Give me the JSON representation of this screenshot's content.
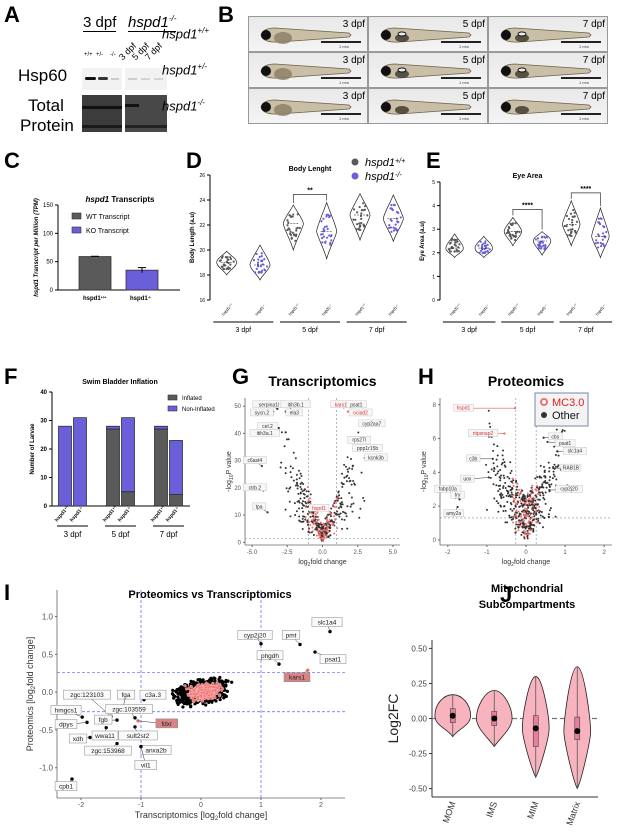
{
  "panels": {
    "A": {
      "letter": "A",
      "group_left": "3 dpf",
      "group_right": "hspd1",
      "group_right_sup": "-/-",
      "lane_labels_left": [
        "+/+",
        "+/-",
        "-/-"
      ],
      "lane_labels_right": [
        "3 dpf",
        "5 dpf",
        "7 dpf"
      ],
      "row_labels": [
        "Hsp60",
        "Total",
        "Protein"
      ]
    },
    "B": {
      "letter": "B",
      "genotypes": [
        {
          "name": "hspd1",
          "sup": "+/+"
        },
        {
          "name": "hspd1",
          "sup": "+/-"
        },
        {
          "name": "hspd1",
          "sup": "-/-"
        }
      ],
      "stages": [
        "3 dpf",
        "5 dpf",
        "7 dpf"
      ],
      "scale_label": "1 mm"
    },
    "C": {
      "letter": "C"
    },
    "D": {
      "letter": "D"
    },
    "E": {
      "letter": "E"
    },
    "F": {
      "letter": "F"
    },
    "G": {
      "letter": "G"
    },
    "H": {
      "letter": "H"
    },
    "I": {
      "letter": "I"
    },
    "J": {
      "letter": "J"
    }
  },
  "colors": {
    "wt": "#5a5a5a",
    "ko": "#6a5fd8",
    "mc": "#f07070",
    "other": "#333333",
    "violin_fill": "#f7b4bf",
    "box_fill": "#e87fa0",
    "dash_blue": "#5b5bff"
  },
  "chart_data": [
    {
      "id": "C",
      "type": "bar",
      "title": "hspd1 Transcripts",
      "title_italic_part": "hspd1",
      "ylabel": "hspd1 Transcript per Million (TPM)",
      "ylim": [
        0,
        150
      ],
      "yticks": [
        0,
        50,
        100,
        150
      ],
      "categories": [
        "hspd1+/+",
        "hspd1-/-"
      ],
      "category_names": [
        "hspd1",
        "hspd1"
      ],
      "category_sups": [
        "+/+",
        "-/-"
      ],
      "series": [
        {
          "name": "WT Transcript",
          "values": [
            59
          ],
          "errors": [
            0.5
          ]
        },
        {
          "name": "KO Transcript",
          "values": [
            35
          ],
          "errors": [
            4.5
          ]
        }
      ],
      "legend": [
        "WT Transcript",
        "KO Transcript"
      ],
      "legend_position": "top-left"
    },
    {
      "id": "D",
      "type": "violin",
      "title": "Body Lenght",
      "ylabel": "Body Length (a.u)",
      "ylim": [
        16,
        26
      ],
      "yticks": [
        16,
        18,
        20,
        22,
        24,
        26
      ],
      "groups": [
        "3 dpf",
        "5 dpf",
        "7 dpf"
      ],
      "x_labels": [
        "hspd1+/+",
        "hspd1-/-",
        "hspd1+/+",
        "hspd1-/-",
        "hspd1+/+",
        "hspd1-/-"
      ],
      "violins": [
        {
          "genotype": "wt",
          "median": 19.0,
          "min": 18.0,
          "max": 19.9
        },
        {
          "genotype": "ko",
          "median": 18.8,
          "min": 17.6,
          "max": 20.4
        },
        {
          "genotype": "wt",
          "median": 22.1,
          "min": 20.0,
          "max": 23.6
        },
        {
          "genotype": "ko",
          "median": 21.5,
          "min": 19.3,
          "max": 23.8
        },
        {
          "genotype": "wt",
          "median": 22.8,
          "min": 20.8,
          "max": 24.5
        },
        {
          "genotype": "ko",
          "median": 22.5,
          "min": 20.7,
          "max": 24.4
        }
      ],
      "significance": [
        {
          "pair": [
            2,
            3
          ],
          "label": "**"
        }
      ],
      "legend": [
        {
          "label": "hspd1",
          "sup": "+/+",
          "key": "wt"
        },
        {
          "label": "hspd1",
          "sup": "-/-",
          "key": "ko"
        }
      ],
      "legend_position": "top-right"
    },
    {
      "id": "E",
      "type": "violin",
      "title": "Eye Area",
      "ylabel": "Eye Area (a.u)",
      "ylim": [
        0,
        5
      ],
      "yticks": [
        0,
        1,
        2,
        3,
        4,
        5
      ],
      "groups": [
        "3 dpf",
        "5 dpf",
        "7 dpf"
      ],
      "x_labels": [
        "hspd1+/+",
        "hspd1-/-",
        "hspd1+/+",
        "hspd1-/-",
        "hspd1+/+",
        "hspd1-/-"
      ],
      "violins": [
        {
          "genotype": "wt",
          "median": 2.2,
          "min": 1.8,
          "max": 2.8
        },
        {
          "genotype": "ko",
          "median": 2.2,
          "min": 1.8,
          "max": 2.7
        },
        {
          "genotype": "wt",
          "median": 2.9,
          "min": 2.3,
          "max": 3.5
        },
        {
          "genotype": "ko",
          "median": 2.5,
          "min": 1.9,
          "max": 2.9
        },
        {
          "genotype": "wt",
          "median": 3.2,
          "min": 2.3,
          "max": 4.2
        },
        {
          "genotype": "ko",
          "median": 2.7,
          "min": 1.8,
          "max": 3.9
        }
      ],
      "significance": [
        {
          "pair": [
            2,
            3
          ],
          "label": "****"
        },
        {
          "pair": [
            4,
            5
          ],
          "label": "****"
        }
      ]
    },
    {
      "id": "F",
      "type": "bar",
      "stacked": true,
      "title": "Swim Bladder Inflation",
      "ylabel": "Number of Larvae",
      "ylim": [
        0,
        40
      ],
      "yticks": [
        0,
        10,
        20,
        30,
        40
      ],
      "categories": [
        "hspd1+/+",
        "hspd1-/-",
        "hspd1+/+",
        "hspd1-/-",
        "hspd1+/+",
        "hspd1-/-"
      ],
      "groups": [
        "3 dpf",
        "5 dpf",
        "7 dpf"
      ],
      "series": [
        {
          "name": "Inflated",
          "values": [
            0,
            0,
            27,
            5,
            27,
            4
          ]
        },
        {
          "name": "Non-Inflated",
          "values": [
            28,
            31,
            1,
            26,
            1,
            19
          ]
        }
      ],
      "legend": [
        "Inflated",
        "Non-Inflated"
      ],
      "legend_position": "top-right"
    },
    {
      "id": "G",
      "type": "scatter",
      "title": "Transcriptomics",
      "xlabel": "log2fold change",
      "ylabel": "-log10P value",
      "xlim": [
        -5.5,
        5.5
      ],
      "ylim": [
        -1,
        53
      ],
      "xticks": [
        -5.0,
        -2.5,
        0.0,
        2.5,
        5.0
      ],
      "xtick_labels": [
        "-5.0",
        "-2.5",
        "0.0",
        "2.5",
        "5.0"
      ],
      "yticks": [
        0,
        10,
        20,
        30,
        40,
        50
      ],
      "vlines": [
        -1,
        1
      ],
      "hline": 1.3,
      "labels": [
        {
          "text": "serpina1l",
          "x": -3.2,
          "y": 49,
          "lx": -3.8,
          "ly": 50.5,
          "color": "other"
        },
        {
          "text": "itih3b.1",
          "x": -2.6,
          "y": 48,
          "lx": -1.9,
          "ly": 50.5,
          "color": "other"
        },
        {
          "text": "sycn.2",
          "x": -3.5,
          "y": 48,
          "lx": -4.3,
          "ly": 47.5,
          "color": "other"
        },
        {
          "text": "ela3",
          "x": -2.6,
          "y": 48,
          "lx": -2.0,
          "ly": 47.5,
          "color": "other"
        },
        {
          "text": "cel.2",
          "x": -3.1,
          "y": 42,
          "lx": -3.9,
          "ly": 42.5,
          "color": "other"
        },
        {
          "text": "itih3a.1",
          "x": -3.1,
          "y": 41,
          "lx": -4.1,
          "ly": 40,
          "color": "other"
        },
        {
          "text": "c6ast4",
          "x": -4.3,
          "y": 28,
          "lx": -4.8,
          "ly": 30,
          "color": "other"
        },
        {
          "text": "ctrb.2",
          "x": -4.2,
          "y": 19,
          "lx": -4.8,
          "ly": 20,
          "color": "other"
        },
        {
          "text": "tpa",
          "x": -3.9,
          "y": 11,
          "lx": -4.5,
          "ly": 13,
          "color": "other"
        },
        {
          "text": "kars1",
          "x": 1.5,
          "y": 49.5,
          "lx": 1.3,
          "ly": 50.5,
          "color": "mc"
        },
        {
          "text": "psat1",
          "x": 1.9,
          "y": 50,
          "lx": 2.4,
          "ly": 50.5,
          "color": "other"
        },
        {
          "text": "ociad2",
          "x": 1.8,
          "y": 48,
          "lx": 2.7,
          "ly": 47.5,
          "color": "mc"
        },
        {
          "text": "cyp2aa7",
          "x": 2.7,
          "y": 44,
          "lx": 3.5,
          "ly": 43.5,
          "color": "other"
        },
        {
          "text": "rps27l",
          "x": 1.9,
          "y": 37.5,
          "lx": 2.6,
          "ly": 37.5,
          "color": "other"
        },
        {
          "text": "ppp1r15b",
          "x": 2.2,
          "y": 34.5,
          "lx": 3.2,
          "ly": 34.5,
          "color": "other"
        },
        {
          "text": "kcnk3b",
          "x": 3.0,
          "y": 31,
          "lx": 3.8,
          "ly": 31,
          "color": "other"
        },
        {
          "text": "hspd1",
          "x": -0.85,
          "y": 11,
          "lx": -0.25,
          "ly": 12.5,
          "color": "mc"
        }
      ]
    },
    {
      "id": "H",
      "type": "scatter",
      "title": "Proteomics",
      "xlabel": "log2fold change",
      "ylabel": "-log10P value",
      "xlim": [
        -2.2,
        2.2
      ],
      "ylim": [
        -0.3,
        8.4
      ],
      "xticks": [
        -2,
        -1,
        0,
        1,
        2
      ],
      "yticks": [
        0,
        2,
        4,
        6,
        8
      ],
      "vlines": [
        -0.26,
        0.26
      ],
      "hline": 1.3,
      "legend": [
        {
          "label": "MC3.0",
          "key": "mc"
        },
        {
          "label": "Other",
          "key": "other"
        }
      ],
      "legend_position": "top-right",
      "labels": [
        {
          "text": "hspd1",
          "x": -0.28,
          "y": 7.8,
          "lx": -1.6,
          "ly": 7.8,
          "color": "mc"
        },
        {
          "text": "ntpsnap2",
          "x": -0.55,
          "y": 6.3,
          "lx": -1.1,
          "ly": 6.3,
          "color": "mc"
        },
        {
          "text": "cbs",
          "x": 0.45,
          "y": 6.05,
          "lx": 0.75,
          "ly": 6.1,
          "color": "other"
        },
        {
          "text": "psat1",
          "x": 0.55,
          "y": 5.8,
          "lx": 1.0,
          "ly": 5.7,
          "color": "other"
        },
        {
          "text": "slc1a4",
          "x": 0.8,
          "y": 5.25,
          "lx": 1.25,
          "ly": 5.25,
          "color": "other"
        },
        {
          "text": "c3b",
          "x": -0.85,
          "y": 4.8,
          "lx": -1.35,
          "ly": 4.8,
          "color": "other"
        },
        {
          "text": "RAB1B",
          "x": 0.7,
          "y": 4.25,
          "lx": 1.15,
          "ly": 4.25,
          "color": "other"
        },
        {
          "text": "uox",
          "x": -0.95,
          "y": 3.7,
          "lx": -1.5,
          "ly": 3.6,
          "color": "other"
        },
        {
          "text": "cyp2j20",
          "x": 0.6,
          "y": 2.95,
          "lx": 1.1,
          "ly": 3.0,
          "color": "other"
        },
        {
          "text": "fabp10a",
          "x": -1.8,
          "y": 2.5,
          "lx": -2.0,
          "ly": 3.0,
          "color": "other"
        },
        {
          "text": "try",
          "x": -1.7,
          "y": 2.4,
          "lx": -1.75,
          "ly": 2.65,
          "color": "other"
        },
        {
          "text": "amy2a",
          "x": -1.75,
          "y": 1.95,
          "lx": -1.85,
          "ly": 1.55,
          "color": "other"
        }
      ]
    },
    {
      "id": "I",
      "type": "scatter",
      "title": "Proteomics vs Transcriptomics",
      "xlabel": "Transcriptomics [log2fold change]",
      "ylabel": "Proteomics [log2fold change]",
      "xlim": [
        -2.4,
        2.4
      ],
      "ylim": [
        -1.4,
        1.35
      ],
      "xticks": [
        -2,
        -1,
        0,
        1,
        2
      ],
      "yticks": [
        -1.0,
        -0.5,
        0.0,
        0.5,
        1.0
      ],
      "ytick_labels": [
        "-1.0",
        "-0.5",
        "0.0",
        "0.5",
        "1.0"
      ],
      "vlines": [
        -1,
        1
      ],
      "hlines": [
        -0.26,
        0.26
      ],
      "labels": [
        {
          "text": "slc1a4",
          "x": 2.15,
          "y": 0.8,
          "lx": 2.1,
          "ly": 0.92,
          "color": "other"
        },
        {
          "text": "cyp2j20",
          "x": 1.0,
          "y": 0.64,
          "lx": 0.9,
          "ly": 0.75,
          "color": "other"
        },
        {
          "text": "pmt",
          "x": 1.65,
          "y": 0.63,
          "lx": 1.5,
          "ly": 0.75,
          "color": "other"
        },
        {
          "text": "phgdh",
          "x": 1.3,
          "y": 0.37,
          "lx": 1.15,
          "ly": 0.48,
          "color": "other"
        },
        {
          "text": "psat1",
          "x": 1.9,
          "y": 0.53,
          "lx": 2.2,
          "ly": 0.43,
          "color": "other"
        },
        {
          "text": "kars1",
          "x": 1.78,
          "y": 0.29,
          "lx": 1.6,
          "ly": 0.19,
          "color": "mc"
        },
        {
          "text": "zgc:123103",
          "x": -1.5,
          "y": -0.32,
          "lx": -1.9,
          "ly": -0.04,
          "color": "other"
        },
        {
          "text": "fga",
          "x": -1.3,
          "y": -0.2,
          "lx": -1.25,
          "ly": -0.04,
          "color": "other"
        },
        {
          "text": "c3a.3",
          "x": -0.95,
          "y": -0.1,
          "lx": -0.8,
          "ly": -0.04,
          "color": "other"
        },
        {
          "text": "hmgcs1",
          "x": -1.98,
          "y": -0.33,
          "lx": -2.25,
          "ly": -0.24,
          "color": "other"
        },
        {
          "text": "zgc:103559",
          "x": -1.1,
          "y": -0.34,
          "lx": -1.2,
          "ly": -0.23,
          "color": "other"
        },
        {
          "text": "fgb",
          "x": -1.4,
          "y": -0.37,
          "lx": -1.63,
          "ly": -0.37,
          "color": "other"
        },
        {
          "text": "fdxr",
          "x": -1.05,
          "y": -0.38,
          "lx": -0.57,
          "ly": -0.42,
          "color": "mc"
        },
        {
          "text": "dpys",
          "x": -1.9,
          "y": -0.4,
          "lx": -2.25,
          "ly": -0.43,
          "color": "other"
        },
        {
          "text": "wwa11",
          "x": -1.58,
          "y": -0.47,
          "lx": -1.6,
          "ly": -0.58,
          "color": "other"
        },
        {
          "text": "sult2st2",
          "x": -1.1,
          "y": -0.46,
          "lx": -1.05,
          "ly": -0.58,
          "color": "other"
        },
        {
          "text": "xdh",
          "x": -1.85,
          "y": -0.6,
          "lx": -2.05,
          "ly": -0.62,
          "color": "other"
        },
        {
          "text": "zgc:153968",
          "x": -1.4,
          "y": -0.68,
          "lx": -1.55,
          "ly": -0.78,
          "color": "other"
        },
        {
          "text": "anxa2b",
          "x": -1.0,
          "y": -0.72,
          "lx": -0.75,
          "ly": -0.77,
          "color": "other"
        },
        {
          "text": "vil1",
          "x": -1.0,
          "y": -0.72,
          "lx": -0.92,
          "ly": -0.97,
          "color": "other"
        },
        {
          "text": "cpb1",
          "x": -2.15,
          "y": -1.15,
          "lx": -2.25,
          "ly": -1.25,
          "color": "other"
        }
      ]
    },
    {
      "id": "J",
      "type": "violin",
      "title": "Mitochondrial Subcompartments",
      "title_lines": [
        "Mitochondrial",
        "Subcompartments"
      ],
      "ylabel": "Log2FC",
      "ylim": [
        -0.56,
        0.56
      ],
      "yticks": [
        -0.5,
        -0.25,
        0.0,
        0.25,
        0.5
      ],
      "ytick_labels": [
        "-0.50",
        "-0.25",
        "0.00",
        "0.25",
        "0.50"
      ],
      "categories": [
        "MOM",
        "IMS",
        "MIM",
        "Matrix"
      ],
      "violins": [
        {
          "name": "MOM",
          "mean": 0.02,
          "q1": -0.03,
          "q3": 0.07,
          "min": -0.13,
          "max": 0.17
        },
        {
          "name": "IMS",
          "mean": 0.0,
          "q1": -0.05,
          "q3": 0.05,
          "min": -0.2,
          "max": 0.2
        },
        {
          "name": "MIM",
          "mean": -0.07,
          "q1": -0.2,
          "q3": 0.02,
          "min": -0.42,
          "max": 0.3
        },
        {
          "name": "Matrix",
          "mean": -0.09,
          "q1": -0.15,
          "q3": 0.01,
          "min": -0.5,
          "max": 0.37
        }
      ],
      "hline": 0.0
    }
  ]
}
